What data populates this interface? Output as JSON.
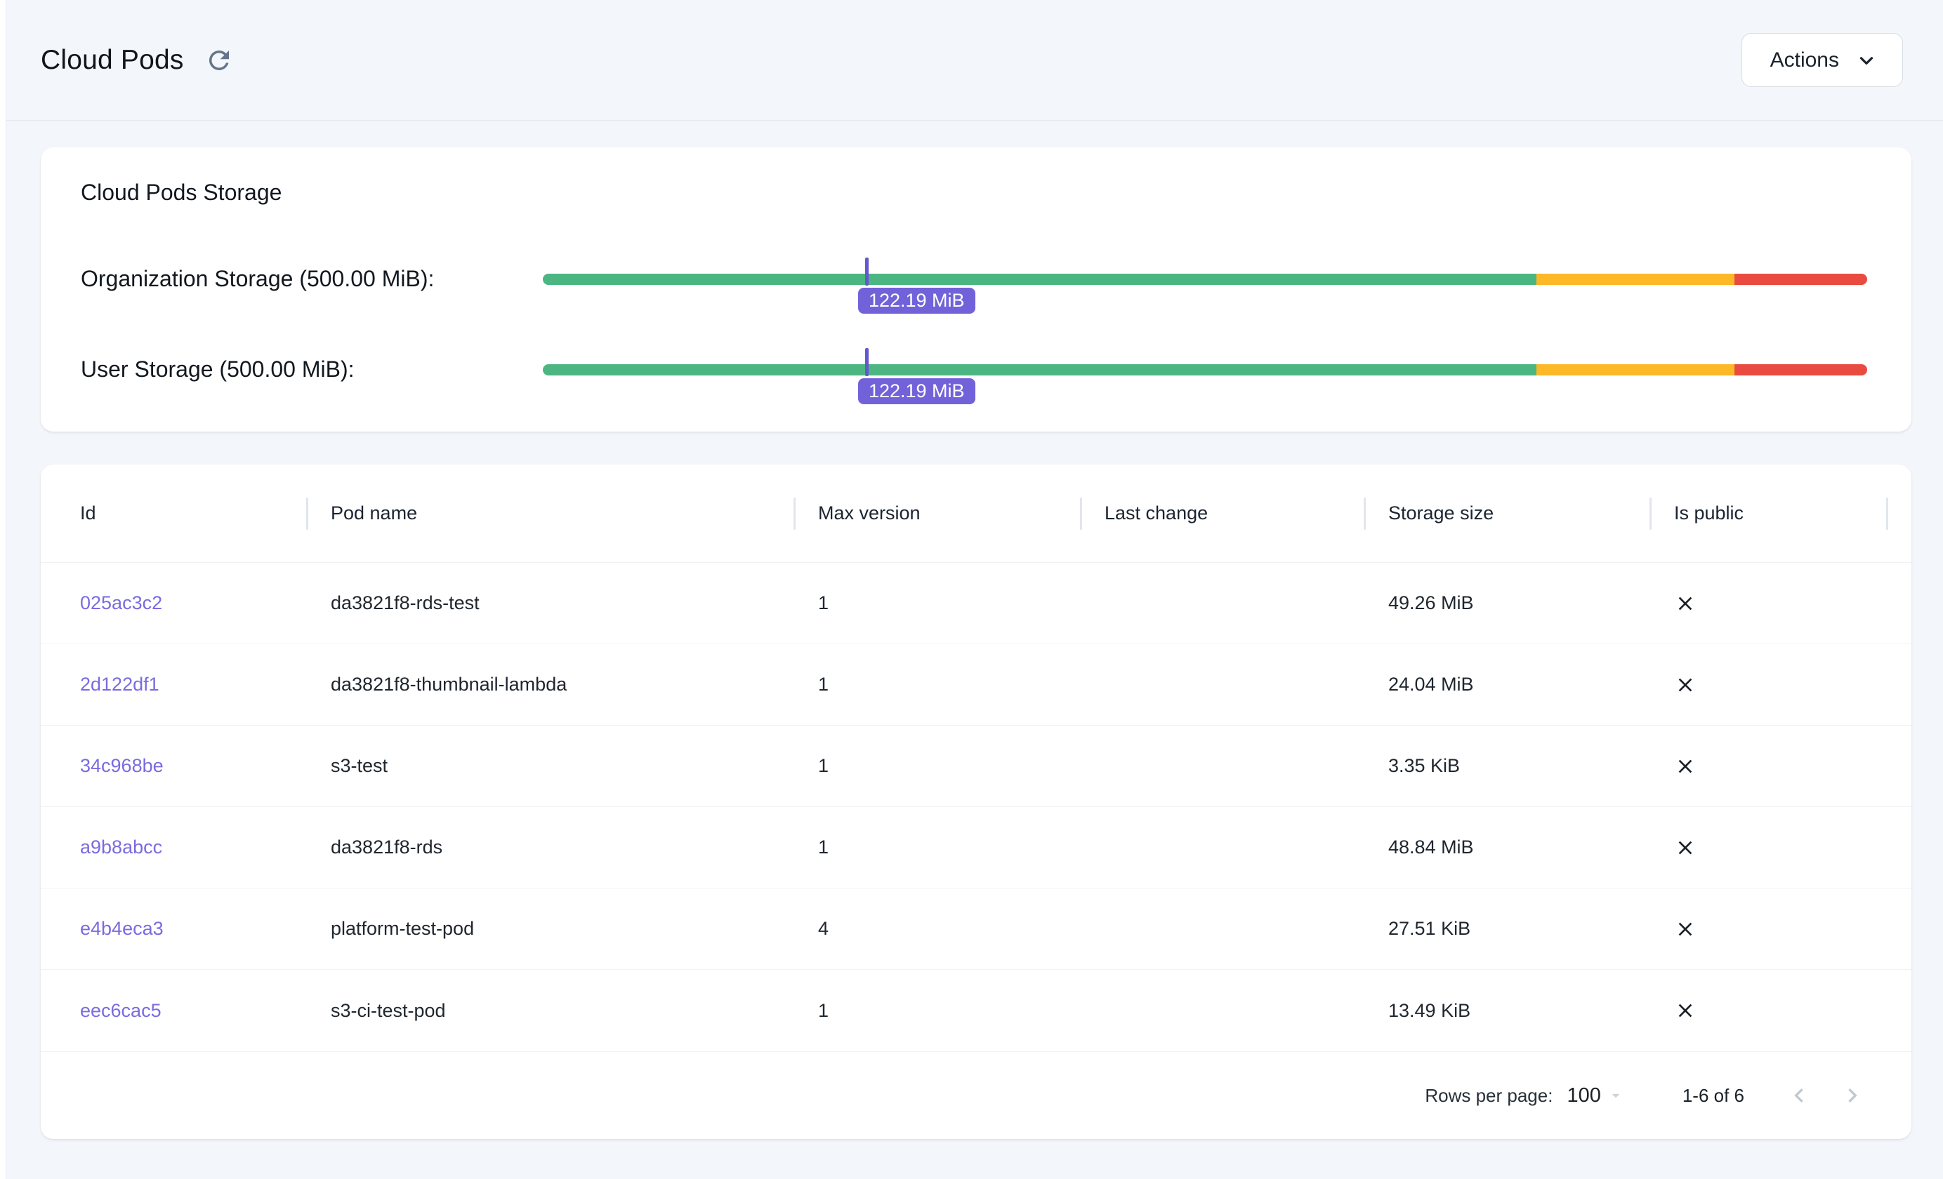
{
  "colors": {
    "page_bg": "#f3f6fa",
    "green": "#4cb682",
    "amber": "#fcb827",
    "red": "#e94b40",
    "marker": "#6557cd",
    "tooltip_bg": "#7262d9",
    "link": "#7a6be0"
  },
  "header": {
    "title": "Cloud Pods",
    "actions_label": "Actions"
  },
  "storage_card": {
    "title": "Cloud Pods Storage",
    "segments": {
      "green_end": 75,
      "amber_end": 90
    },
    "bars": [
      {
        "label": "Organization Storage (500.00 MiB):",
        "value_label": "122.19 MiB",
        "percent": 24.44
      },
      {
        "label": "User Storage (500.00 MiB):",
        "value_label": "122.19 MiB",
        "percent": 24.44
      }
    ]
  },
  "table": {
    "columns": [
      "Id",
      "Pod name",
      "Max version",
      "Last change",
      "Storage size",
      "Is public"
    ],
    "rows": [
      {
        "id": "025ac3c2",
        "pod_name": "da3821f8-rds-test",
        "max_version": "1",
        "last_change": "",
        "storage_size": "49.26 MiB",
        "is_public": false
      },
      {
        "id": "2d122df1",
        "pod_name": "da3821f8-thumbnail-lambda",
        "max_version": "1",
        "last_change": "",
        "storage_size": "24.04 MiB",
        "is_public": false
      },
      {
        "id": "34c968be",
        "pod_name": "s3-test",
        "max_version": "1",
        "last_change": "",
        "storage_size": "3.35 KiB",
        "is_public": false
      },
      {
        "id": "a9b8abcc",
        "pod_name": "da3821f8-rds",
        "max_version": "1",
        "last_change": "",
        "storage_size": "48.84 MiB",
        "is_public": false
      },
      {
        "id": "e4b4eca3",
        "pod_name": "platform-test-pod",
        "max_version": "4",
        "last_change": "",
        "storage_size": "27.51 KiB",
        "is_public": false
      },
      {
        "id": "eec6cac5",
        "pod_name": "s3-ci-test-pod",
        "max_version": "1",
        "last_change": "",
        "storage_size": "13.49 KiB",
        "is_public": false
      }
    ],
    "footer": {
      "rows_per_page_label": "Rows per page:",
      "rows_per_page_value": "100",
      "range_label": "1-6 of 6"
    }
  }
}
